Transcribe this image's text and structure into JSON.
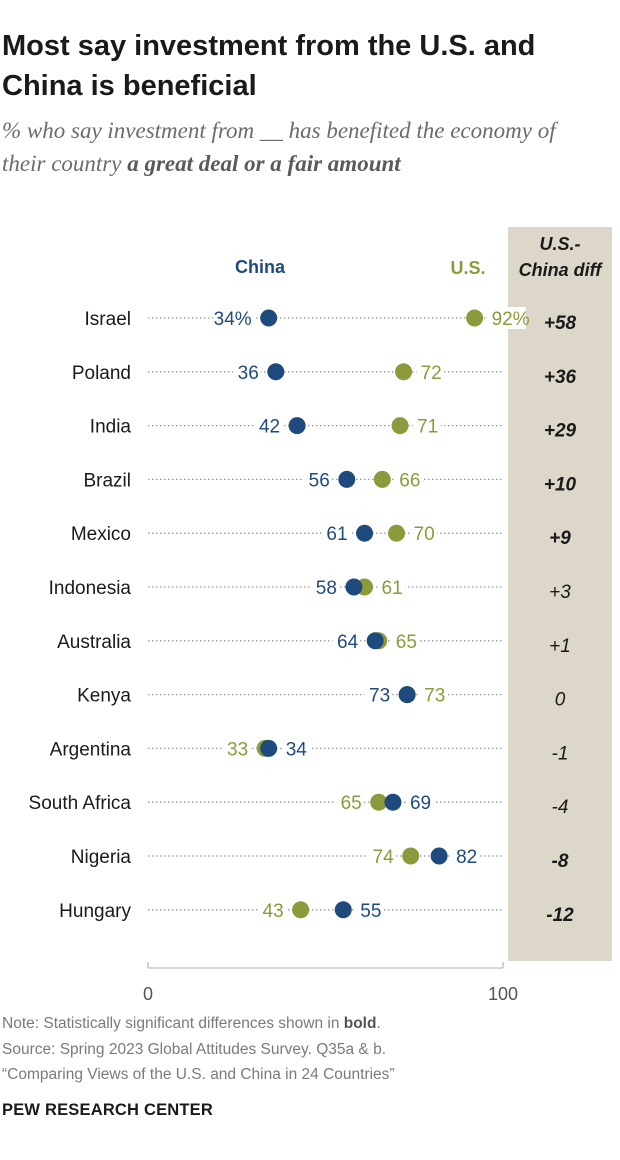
{
  "title": "Most say investment from the U.S. and China is beneficial",
  "subtitle_plain": "% who say investment from __ has benefited the economy of their country ",
  "subtitle_bold": "a great deal or a fair amount",
  "colors": {
    "china": "#1f4a7e",
    "us": "#8c9a3b",
    "diff_bg": "#dcd7c8",
    "dots": "#9a9a9a"
  },
  "chart_data": {
    "type": "dot",
    "legend": [
      "China",
      "U.S."
    ],
    "diff_header": [
      "U.S.-",
      "China diff"
    ],
    "xlim": [
      0,
      100
    ],
    "x_ticks": [
      "0",
      "100"
    ],
    "rows": [
      {
        "country": "Israel",
        "china": 34,
        "us": 92,
        "china_label": "34%",
        "us_label": "92%",
        "diff": "+58",
        "significant": true
      },
      {
        "country": "Poland",
        "china": 36,
        "us": 72,
        "china_label": "36",
        "us_label": "72",
        "diff": "+36",
        "significant": true
      },
      {
        "country": "India",
        "china": 42,
        "us": 71,
        "china_label": "42",
        "us_label": "71",
        "diff": "+29",
        "significant": true
      },
      {
        "country": "Brazil",
        "china": 56,
        "us": 66,
        "china_label": "56",
        "us_label": "66",
        "diff": "+10",
        "significant": true
      },
      {
        "country": "Mexico",
        "china": 61,
        "us": 70,
        "china_label": "61",
        "us_label": "70",
        "diff": "+9",
        "significant": true
      },
      {
        "country": "Indonesia",
        "china": 58,
        "us": 61,
        "china_label": "58",
        "us_label": "61",
        "diff": "+3",
        "significant": false
      },
      {
        "country": "Australia",
        "china": 64,
        "us": 65,
        "china_label": "64",
        "us_label": "65",
        "diff": "+1",
        "significant": false
      },
      {
        "country": "Kenya",
        "china": 73,
        "us": 73,
        "china_label": "73",
        "us_label": "73",
        "diff": "0",
        "significant": false
      },
      {
        "country": "Argentina",
        "china": 34,
        "us": 33,
        "china_label": "34",
        "us_label": "33",
        "diff": "-1",
        "significant": false
      },
      {
        "country": "South Africa",
        "china": 69,
        "us": 65,
        "china_label": "69",
        "us_label": "65",
        "diff": "-4",
        "significant": false
      },
      {
        "country": "Nigeria",
        "china": 82,
        "us": 74,
        "china_label": "82",
        "us_label": "74",
        "diff": "-8",
        "significant": true
      },
      {
        "country": "Hungary",
        "china": 55,
        "us": 43,
        "china_label": "55",
        "us_label": "43",
        "diff": "-12",
        "significant": true
      }
    ]
  },
  "footer": {
    "note_prefix": "Note: Statistically significant differences shown in ",
    "note_bold": "bold",
    "note_suffix": ".",
    "source": "Source: Spring 2023 Global Attitudes Survey. Q35a & b.",
    "report": "“Comparing Views of the U.S. and China in 24 Countries”",
    "brand": "PEW RESEARCH CENTER"
  }
}
